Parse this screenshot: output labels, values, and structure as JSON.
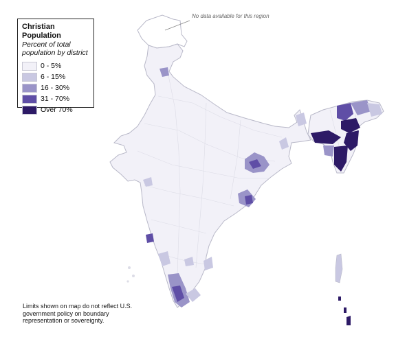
{
  "legend": {
    "title": "Christian Population",
    "subtitle": "Percent of total population by district",
    "items": [
      {
        "label": "0 - 5%",
        "color": "#f2f1f8"
      },
      {
        "label": "6 - 15%",
        "color": "#c9c8e2"
      },
      {
        "label": "16 - 30%",
        "color": "#9a94c8"
      },
      {
        "label": "31 - 70%",
        "color": "#5f4ea6"
      },
      {
        "label": "Over 70%",
        "color": "#2d1a66"
      }
    ]
  },
  "no_data_note": "No data available for this region",
  "disclaimer": "Limits shown on map do not reflect U.S. government policy on boundary representation or sovereignty.",
  "colors": {
    "no_data": "#ffffff",
    "boundary": "#cfcfdc",
    "outline": "#b8b8c8"
  }
}
